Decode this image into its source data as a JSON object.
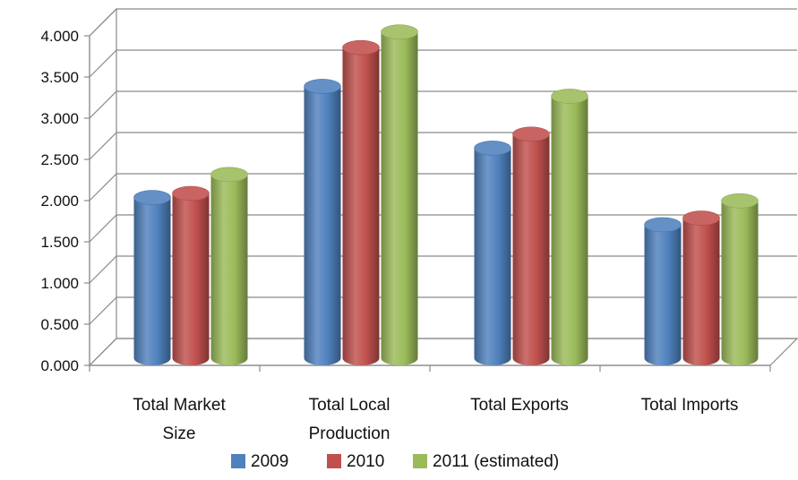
{
  "chart_data": {
    "type": "bar",
    "categories": [
      [
        "Total Market",
        "Size"
      ],
      [
        "Total Local",
        "Production"
      ],
      [
        "Total Exports"
      ],
      [
        "Total Imports"
      ]
    ],
    "series": [
      {
        "name": "2009",
        "values": [
          1.95,
          3.3,
          2.55,
          1.62
        ],
        "color": "#4f81bd"
      },
      {
        "name": "2010",
        "values": [
          2.0,
          3.77,
          2.72,
          1.7
        ],
        "color": "#c0504d"
      },
      {
        "name": "2011 (estimated)",
        "values": [
          2.23,
          3.96,
          3.18,
          1.91
        ],
        "color": "#9bbb59"
      }
    ],
    "ylim": [
      0,
      4
    ],
    "yticks": [
      "0.000",
      "0.500",
      "1.000",
      "1.500",
      "2.000",
      "2.500",
      "3.000",
      "3.500",
      "4.000"
    ],
    "grid": true,
    "legend": "bottom",
    "style": "3d-cylinder"
  }
}
